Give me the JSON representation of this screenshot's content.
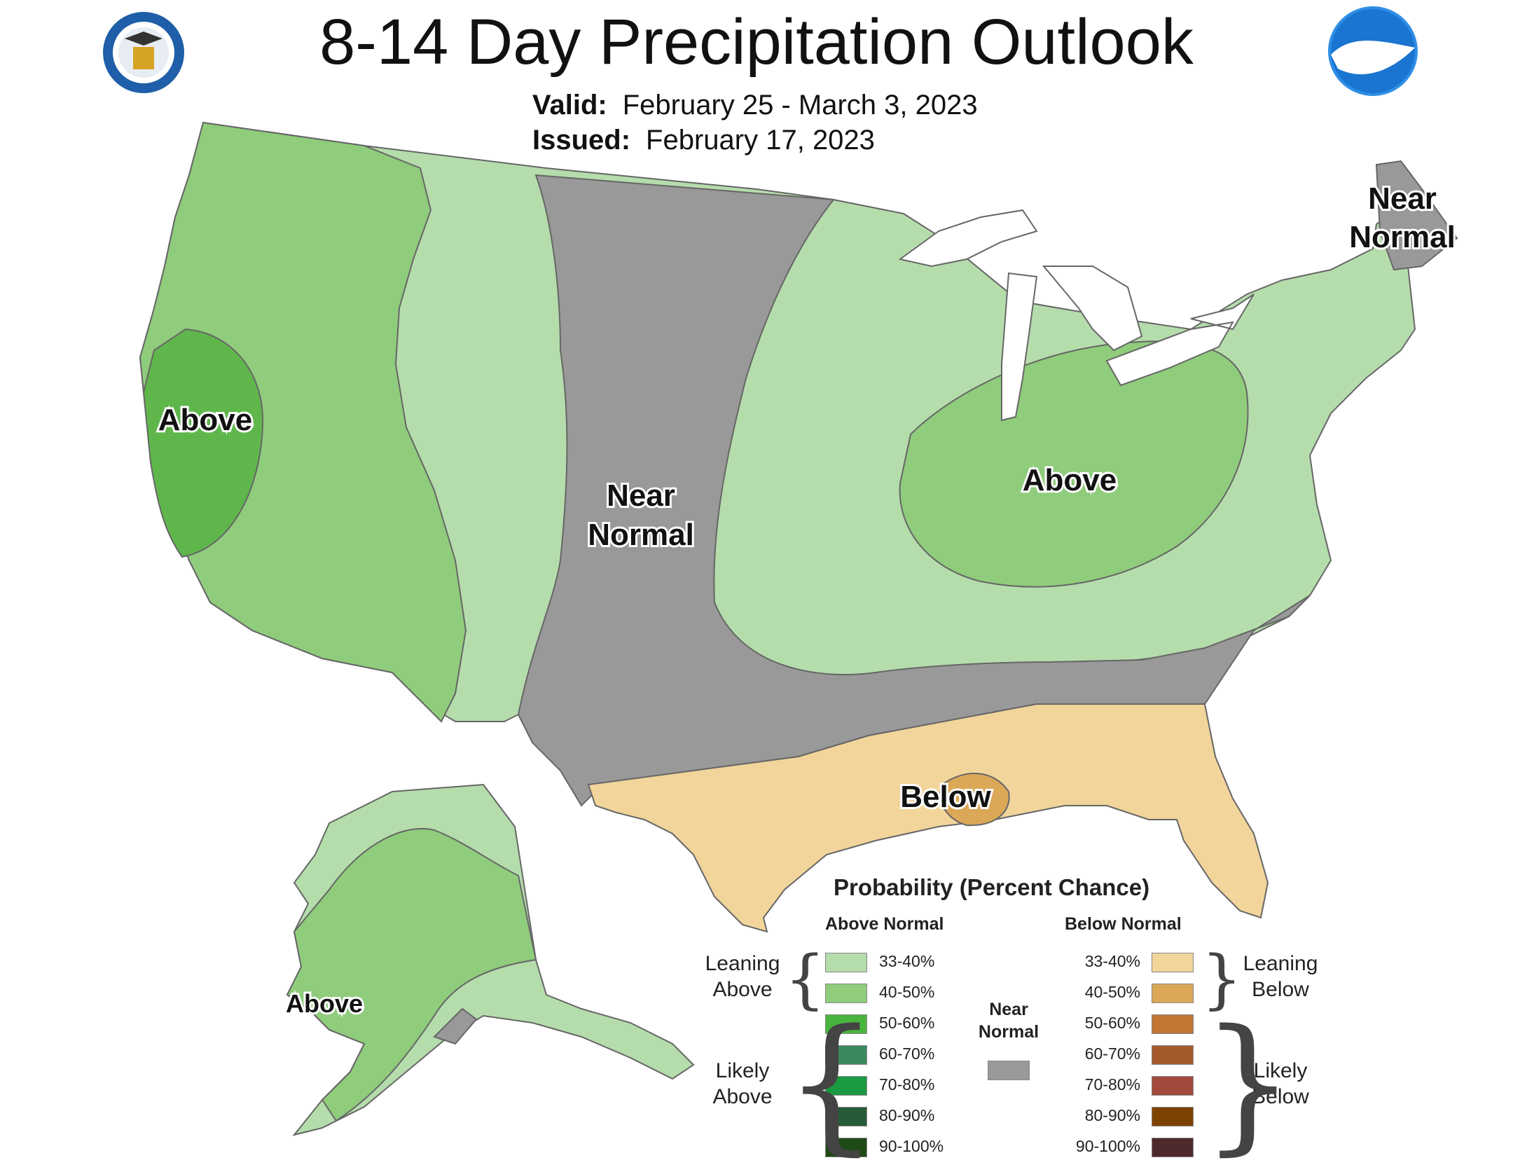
{
  "title": "8-14 Day Precipitation Outlook",
  "valid_label": "Valid:",
  "valid_value": "February 25 - March 3, 2023",
  "issued_label": "Issued:",
  "issued_value": "February 17, 2023",
  "logos": {
    "left": "seal-icon",
    "right": "noaa-logo-icon"
  },
  "colors": {
    "leaning_above": "#b5ddac",
    "above_40_50": "#8fcc7c",
    "above_50_60": "#5fb74c",
    "near_normal": "#999999",
    "leaning_below": "#f2d59b",
    "below_40_50": "#dba858",
    "lakes": "#ffffff"
  },
  "map_labels": {
    "near_normal_1": "Near",
    "near_normal_2": "Normal",
    "near_normal_ne_1": "Near",
    "near_normal_ne_2": "Normal",
    "above_west": "Above",
    "above_ohio": "Above",
    "below_gulf": "Below",
    "above_alaska": "Above"
  },
  "legend": {
    "title": "Probability (Percent Chance)",
    "above_header": "Above Normal",
    "below_header": "Below Normal",
    "near_header_1": "Near",
    "near_header_2": "Normal",
    "leaning_above_1": "Leaning",
    "leaning_above_2": "Above",
    "likely_above_1": "Likely",
    "likely_above_2": "Above",
    "leaning_below_1": "Leaning",
    "leaning_below_2": "Below",
    "likely_below_1": "Likely",
    "likely_below_2": "Below",
    "above_items": [
      {
        "label": "33-40%",
        "color": "#b5ddac"
      },
      {
        "label": "40-50%",
        "color": "#8fcc7c"
      },
      {
        "label": "50-60%",
        "color": "#48b53f"
      },
      {
        "label": "60-70%",
        "color": "#3b8a5d"
      },
      {
        "label": "70-80%",
        "color": "#1a9a41"
      },
      {
        "label": "80-90%",
        "color": "#275a38"
      },
      {
        "label": "90-100%",
        "color": "#1f4a18"
      }
    ],
    "below_items": [
      {
        "label": "33-40%",
        "color": "#f2d59b"
      },
      {
        "label": "40-50%",
        "color": "#dba858"
      },
      {
        "label": "50-60%",
        "color": "#c27633"
      },
      {
        "label": "60-70%",
        "color": "#a55a2c"
      },
      {
        "label": "70-80%",
        "color": "#a24a3b"
      },
      {
        "label": "80-90%",
        "color": "#7d4200"
      },
      {
        "label": "90-100%",
        "color": "#4e2a2c"
      }
    ],
    "near_color": "#999999"
  }
}
